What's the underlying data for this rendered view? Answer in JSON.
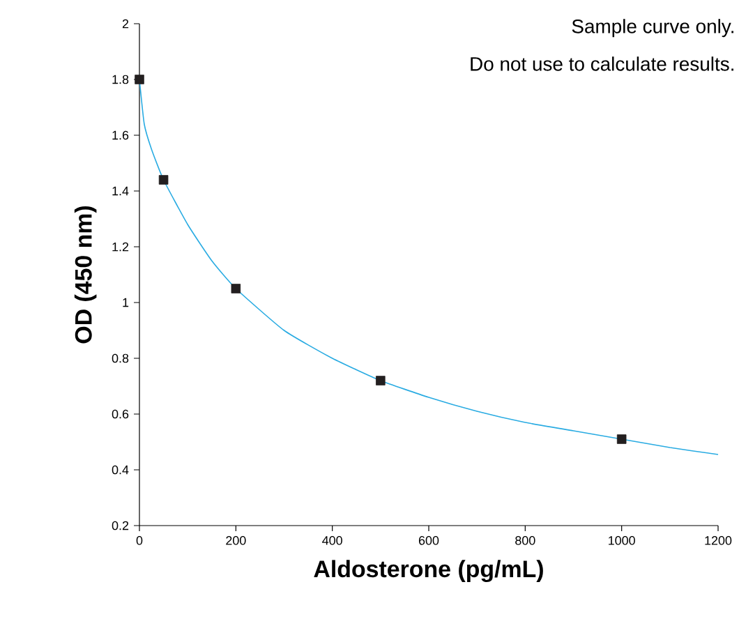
{
  "chart_data": {
    "type": "scatter",
    "xlabel": "Aldosterone (pg/mL)",
    "ylabel": "OD (450 nm)",
    "annotations": [
      "Sample curve only.",
      "Do not use to calculate results."
    ],
    "xlim": [
      0,
      1200
    ],
    "xticks": [
      0,
      200,
      400,
      600,
      800,
      1000,
      1200
    ],
    "ylim": [
      0.2,
      2
    ],
    "yticks": [
      0.2,
      0.4,
      0.6,
      0.8,
      1,
      1.2,
      1.4,
      1.6,
      1.8,
      2
    ],
    "grid": false,
    "series": [
      {
        "type": "line",
        "marker": "none",
        "color": "#29abe2",
        "x": [
          0,
          10,
          25,
          50,
          100,
          150,
          200,
          300,
          400,
          500,
          600,
          700,
          800,
          900,
          1000,
          1100,
          1200
        ],
        "values": [
          1.8,
          1.64,
          1.55,
          1.44,
          1.28,
          1.15,
          1.05,
          0.9,
          0.8,
          0.72,
          0.66,
          0.61,
          0.57,
          0.54,
          0.51,
          0.48,
          0.455
        ]
      },
      {
        "marker": "square",
        "color": "#231f20",
        "x": [
          0,
          50,
          200,
          500,
          1000
        ],
        "values": [
          1.8,
          1.44,
          1.05,
          0.72,
          0.51
        ]
      }
    ]
  }
}
